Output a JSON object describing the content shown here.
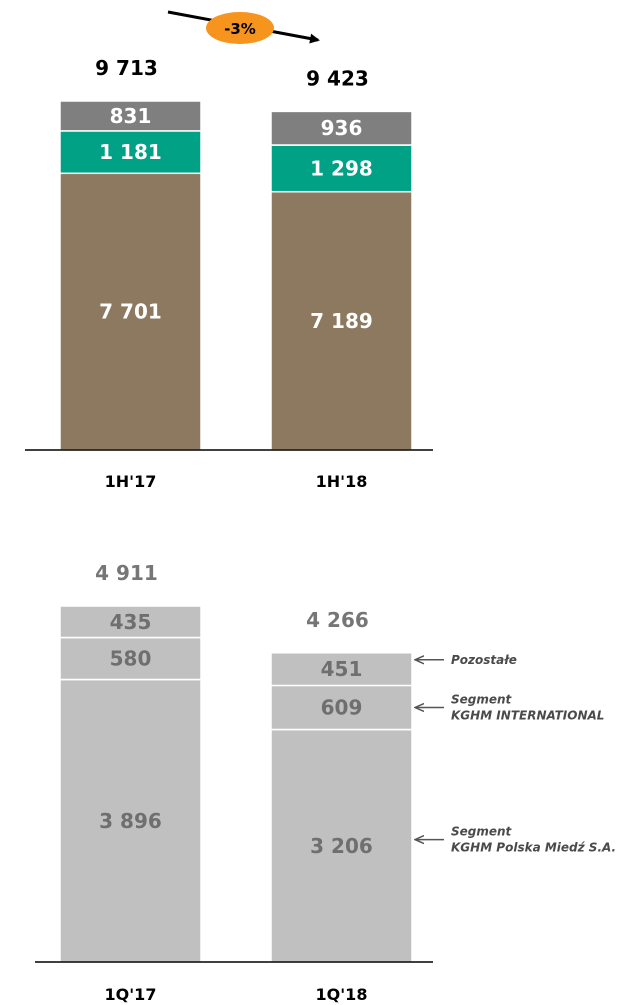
{
  "colors": {
    "kghm_polska_miedz": "#8c7960",
    "kghm_international": "#00a185",
    "pozostale": "#7f7f7f",
    "quarter_bars": "#c0c0c0",
    "badge": "#f7941d",
    "axis": "#000000"
  },
  "badge": {
    "text": "-3%"
  },
  "chart_data": [
    {
      "type": "bar",
      "stacked": true,
      "categories": [
        "1H'17",
        "1H'18"
      ],
      "totals": [
        "9 713",
        "9 423"
      ],
      "totals_values": [
        9713,
        9423
      ],
      "series": [
        {
          "name": "Segment KGHM Polska Miedź S.A.",
          "values": [
            7701,
            7189
          ],
          "labels": [
            "7 701",
            "7 189"
          ]
        },
        {
          "name": "Segment KGHM INTERNATIONAL",
          "values": [
            1181,
            1298
          ],
          "labels": [
            "1 181",
            "1 298"
          ]
        },
        {
          "name": "Pozostałe",
          "values": [
            831,
            936
          ],
          "labels": [
            "831",
            "936"
          ]
        }
      ],
      "annotation": "-3%"
    },
    {
      "type": "bar",
      "stacked": true,
      "categories": [
        "1Q'17",
        "1Q'18"
      ],
      "totals": [
        "4 911",
        "4 266"
      ],
      "totals_values": [
        4911,
        4266
      ],
      "series": [
        {
          "name": "Segment KGHM Polska Miedź S.A.",
          "values": [
            3896,
            3206
          ],
          "labels": [
            "3 896",
            "3 206"
          ]
        },
        {
          "name": "Segment KGHM INTERNATIONAL",
          "values": [
            580,
            609
          ],
          "labels": [
            "580",
            "609"
          ]
        },
        {
          "name": "Pozostałe",
          "values": [
            435,
            451
          ],
          "labels": [
            "435",
            "451"
          ]
        }
      ]
    }
  ],
  "legend": [
    {
      "lines": [
        "Pozostałe"
      ]
    },
    {
      "lines": [
        "Segment",
        "KGHM INTERNATIONAL"
      ]
    },
    {
      "lines": [
        "Segment",
        "KGHM Polska Miedź S.A."
      ]
    }
  ]
}
